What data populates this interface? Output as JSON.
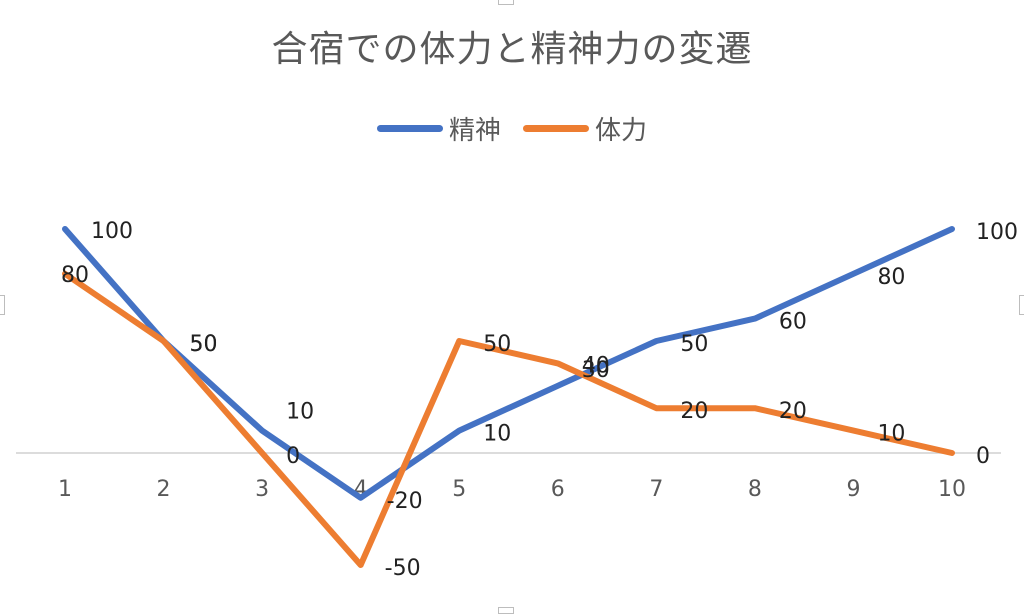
{
  "chart_data": {
    "type": "line",
    "title": "合宿での体力と精神力の変遷",
    "categories": [
      "1",
      "2",
      "3",
      "4",
      "5",
      "6",
      "7",
      "8",
      "9",
      "10"
    ],
    "series": [
      {
        "name": "精神",
        "color": "#4472C4",
        "values": [
          100,
          50,
          10,
          -20,
          10,
          30,
          50,
          60,
          80,
          100
        ]
      },
      {
        "name": "体力",
        "color": "#ED7D31",
        "values": [
          80,
          50,
          0,
          -50,
          50,
          40,
          20,
          20,
          10,
          0
        ]
      }
    ],
    "ylim": [
      -50,
      100
    ],
    "xlabel": "",
    "ylabel": "",
    "legend_position": "top",
    "grid": false,
    "data_labels": true
  }
}
